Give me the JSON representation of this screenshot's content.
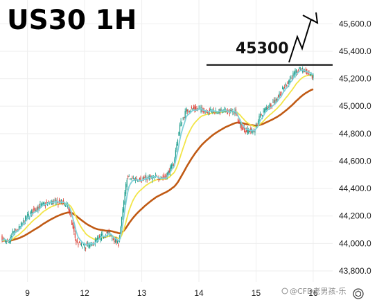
{
  "chart_data": {
    "type": "candlestick",
    "title": "US30 1H",
    "annotation": "45300",
    "annotation_level": 45300,
    "x_ticks": [
      "9",
      "12",
      "13",
      "14",
      "15",
      "16"
    ],
    "x_tick_index": [
      24,
      78,
      132,
      186,
      240,
      294
    ],
    "ylim": [
      43800,
      45700
    ],
    "y_ticks": [
      {
        "value": 45600,
        "label": "45,600.0"
      },
      {
        "value": 45400,
        "label": "45,400.0"
      },
      {
        "value": 45200,
        "label": "45,200.0"
      },
      {
        "value": 45000,
        "label": "45,000.0"
      },
      {
        "value": 44800,
        "label": "44,800.0"
      },
      {
        "value": 44600,
        "label": "44,600.0"
      },
      {
        "value": 44400,
        "label": "44,400.0"
      },
      {
        "value": 44200,
        "label": "44,200.0"
      },
      {
        "value": 44000,
        "label": "44,000.0"
      },
      {
        "value": 43800,
        "label": "43,800.0"
      }
    ],
    "anchors": [
      [
        0,
        44040
      ],
      [
        6,
        43990
      ],
      [
        10,
        44080
      ],
      [
        16,
        44110
      ],
      [
        22,
        44180
      ],
      [
        28,
        44230
      ],
      [
        35,
        44270
      ],
      [
        45,
        44300
      ],
      [
        55,
        44300
      ],
      [
        62,
        44280
      ],
      [
        66,
        44140
      ],
      [
        70,
        44010
      ],
      [
        76,
        43980
      ],
      [
        84,
        43990
      ],
      [
        92,
        44040
      ],
      [
        100,
        44080
      ],
      [
        104,
        44040
      ],
      [
        110,
        44000
      ],
      [
        118,
        44480
      ],
      [
        124,
        44470
      ],
      [
        132,
        44470
      ],
      [
        140,
        44480
      ],
      [
        154,
        44480
      ],
      [
        162,
        44580
      ],
      [
        168,
        44860
      ],
      [
        174,
        44970
      ],
      [
        180,
        44980
      ],
      [
        192,
        44970
      ],
      [
        206,
        44960
      ],
      [
        220,
        44960
      ],
      [
        224,
        44870
      ],
      [
        230,
        44820
      ],
      [
        238,
        44820
      ],
      [
        244,
        44930
      ],
      [
        250,
        44990
      ],
      [
        258,
        45040
      ],
      [
        266,
        45130
      ],
      [
        272,
        45200
      ],
      [
        278,
        45250
      ],
      [
        282,
        45270
      ],
      [
        290,
        45240
      ],
      [
        294,
        45210
      ]
    ],
    "fast_ma_color": "#7fd0d8",
    "mid_ma_color": "#f2e547",
    "slow_ma_color": "#c05a14",
    "bull_color": "#1a9c8a",
    "bear_color": "#d93a2f"
  },
  "watermark": "@CFD老男孩-乐"
}
